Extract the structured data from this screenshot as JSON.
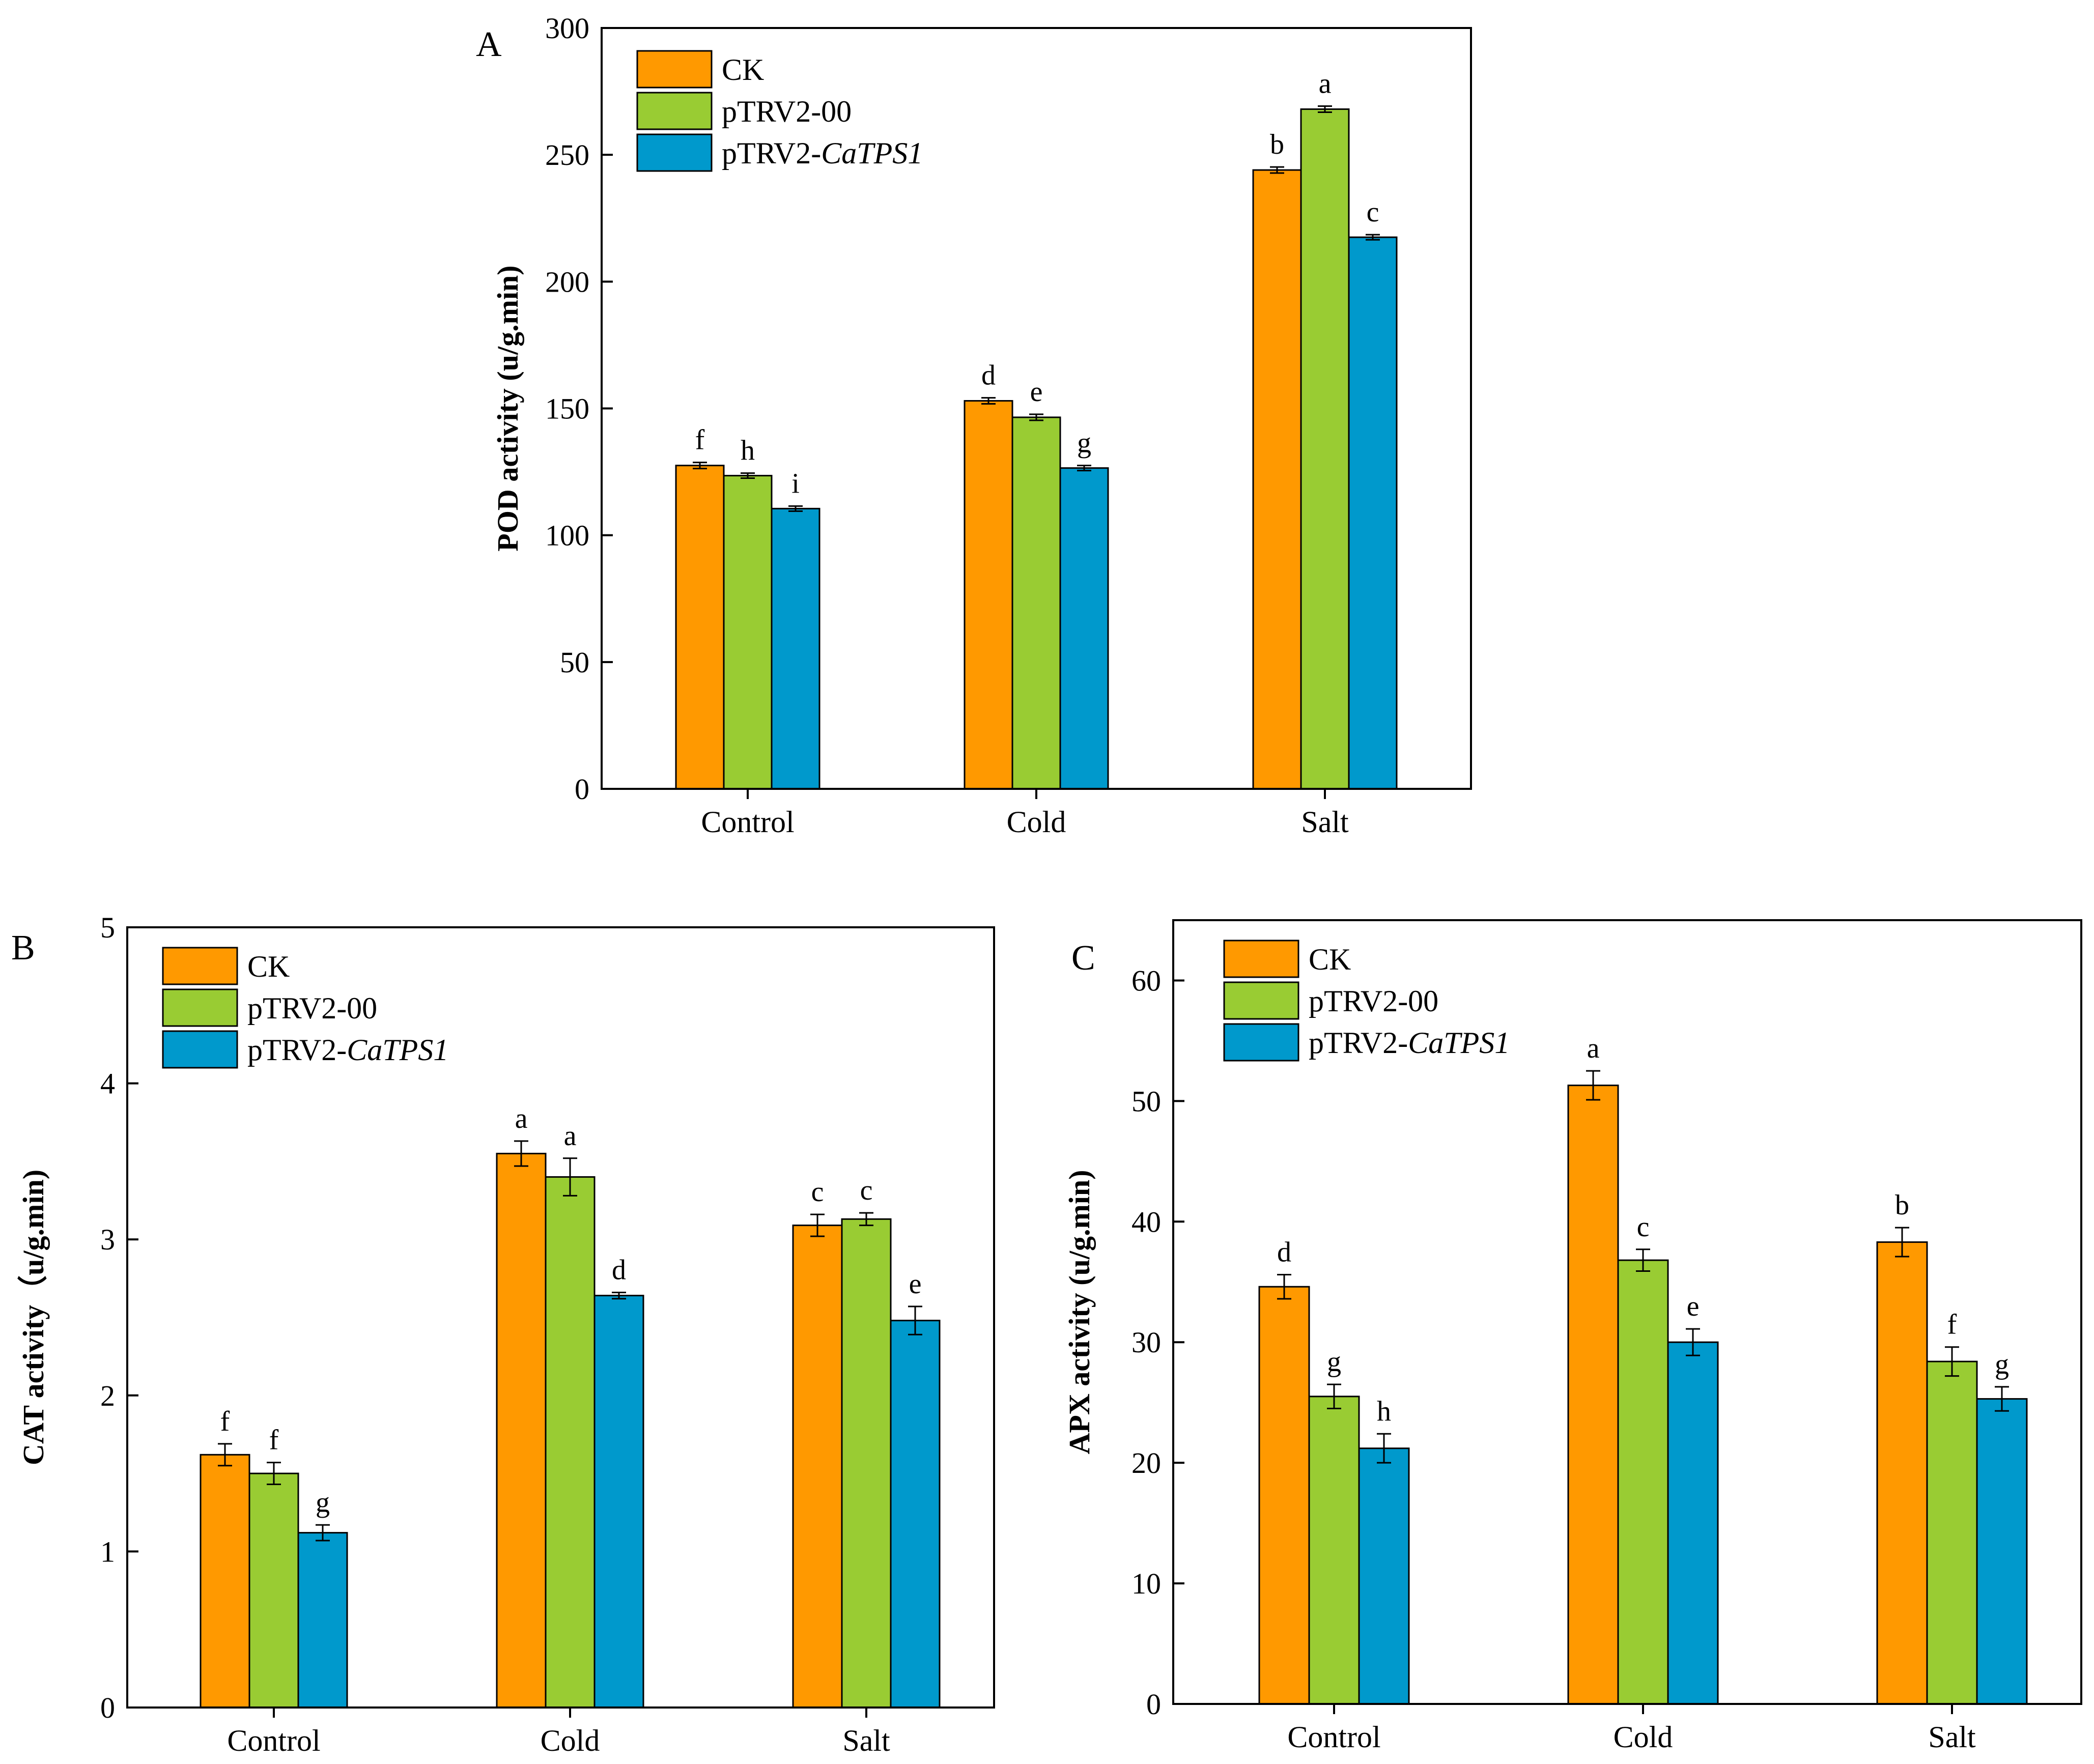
{
  "chart_data": [
    {
      "panel": "A",
      "type": "bar",
      "categories": [
        "Control",
        "Cold",
        "Salt"
      ],
      "ylabel": "POD activity (u/g.min)",
      "xlabel": "",
      "ylim": [
        0,
        300
      ],
      "yticks": [
        0,
        50,
        100,
        150,
        200,
        250,
        300
      ],
      "legend_position": "top-left",
      "series": [
        {
          "name": "CK",
          "color": "#FF9900",
          "values": [
            127.5,
            153,
            244
          ],
          "errors": [
            1.2,
            1.2,
            1.2
          ],
          "letters": [
            "f",
            "d",
            "b"
          ]
        },
        {
          "name": "pTRV2-00",
          "color": "#99CC33",
          "values": [
            123.5,
            146.5,
            268
          ],
          "errors": [
            1.0,
            1.2,
            1.2
          ],
          "letters": [
            "h",
            "e",
            "a"
          ]
        },
        {
          "name": "pTRV2-CaTPS1",
          "name_plain": "pTRV2-",
          "name_italic": "CaTPS1",
          "color": "#0099CC",
          "values": [
            110.5,
            126.5,
            217.5
          ],
          "errors": [
            1.0,
            1.0,
            1.0
          ],
          "letters": [
            "i",
            "g",
            "c"
          ]
        }
      ]
    },
    {
      "panel": "B",
      "type": "bar",
      "categories": [
        "Control",
        "Cold",
        "Salt"
      ],
      "ylabel": "CAT activity（u/g.min)",
      "xlabel": "",
      "ylim": [
        0,
        5
      ],
      "yticks": [
        0,
        1,
        2,
        3,
        4,
        5
      ],
      "legend_position": "top-left",
      "series": [
        {
          "name": "CK",
          "color": "#FF9900",
          "values": [
            1.62,
            3.55,
            3.09
          ],
          "errors": [
            0.07,
            0.08,
            0.07
          ],
          "letters": [
            "f",
            "a",
            "c"
          ]
        },
        {
          "name": "pTRV2-00",
          "color": "#99CC33",
          "values": [
            1.5,
            3.4,
            3.13
          ],
          "errors": [
            0.07,
            0.12,
            0.04
          ],
          "letters": [
            "f",
            "a",
            "c"
          ]
        },
        {
          "name": "pTRV2-CaTPS1",
          "name_plain": "pTRV2-",
          "name_italic": "CaTPS1",
          "color": "#0099CC",
          "values": [
            1.12,
            2.64,
            2.48
          ],
          "errors": [
            0.05,
            0.02,
            0.09
          ],
          "letters": [
            "g",
            "d",
            "e"
          ]
        }
      ]
    },
    {
      "panel": "C",
      "type": "bar",
      "categories": [
        "Control",
        "Cold",
        "Salt"
      ],
      "ylabel": "APX activity (u/g.min)",
      "xlabel": "",
      "ylim": [
        0,
        65
      ],
      "yticks": [
        0,
        10,
        20,
        30,
        40,
        50,
        60
      ],
      "legend_position": "top-left",
      "series": [
        {
          "name": "CK",
          "color": "#FF9900",
          "values": [
            34.6,
            51.3,
            38.3
          ],
          "errors": [
            1.0,
            1.2,
            1.2
          ],
          "letters": [
            "d",
            "a",
            "b"
          ]
        },
        {
          "name": "pTRV2-00",
          "color": "#99CC33",
          "values": [
            25.5,
            36.8,
            28.4
          ],
          "errors": [
            1.0,
            0.9,
            1.2
          ],
          "letters": [
            "g",
            "c",
            "f"
          ]
        },
        {
          "name": "pTRV2-CaTPS1",
          "name_plain": "pTRV2-",
          "name_italic": "CaTPS1",
          "color": "#0099CC",
          "values": [
            21.2,
            30.0,
            25.3
          ],
          "errors": [
            1.2,
            1.1,
            1.0
          ],
          "letters": [
            "h",
            "e",
            "g"
          ]
        }
      ]
    }
  ]
}
